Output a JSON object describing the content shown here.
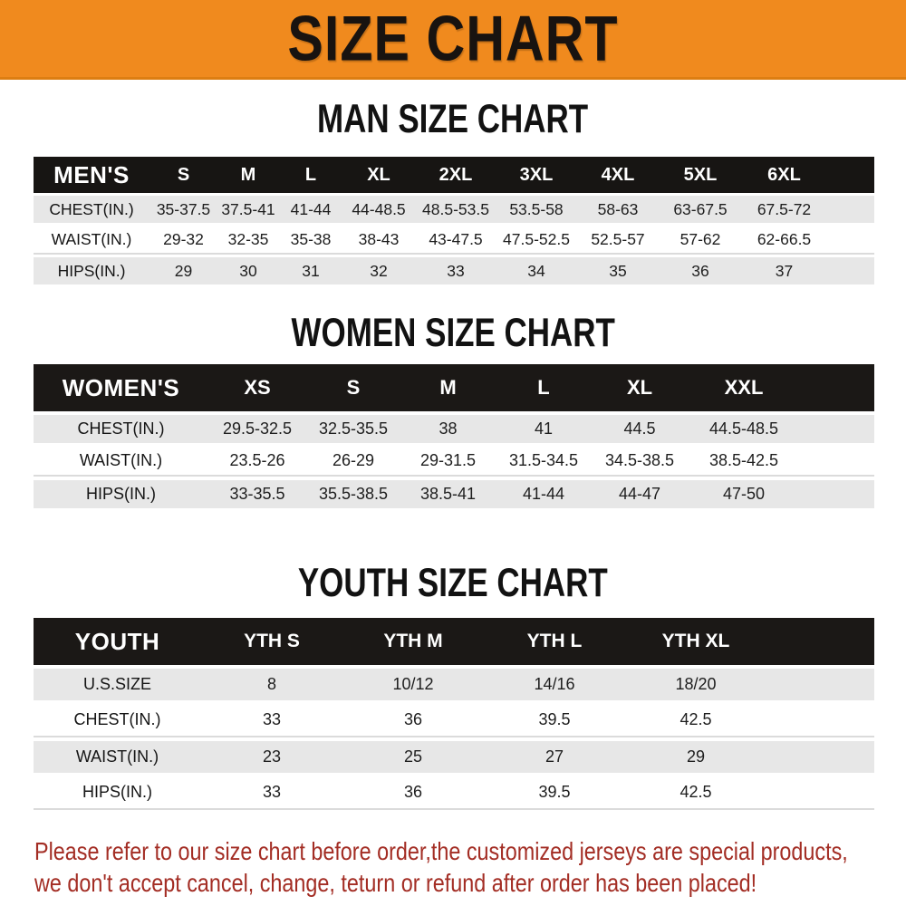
{
  "banner": {
    "title": "SIZE CHART"
  },
  "colors": {
    "banner_bg": "#F08A1E",
    "banner_text": "#181310",
    "table_header_bg": "#171513",
    "table_header_text": "#FFFFFF",
    "row_gray": "#E7E7E7",
    "row_white": "#FFFFFF",
    "note_red": "#A32D24"
  },
  "sections": [
    {
      "heading": "MAN SIZE CHART",
      "table": {
        "header": {
          "label": "MEN'S",
          "columns": [
            "S",
            "M",
            "L",
            "XL",
            "2XL",
            "3XL",
            "4XL",
            "5XL",
            "6XL"
          ]
        },
        "rows": [
          {
            "label": "CHEST(IN.)",
            "values": [
              "35-37.5",
              "37.5-41",
              "41-44",
              "44-48.5",
              "48.5-53.5",
              "53.5-58",
              "58-63",
              "63-67.5",
              "67.5-72"
            ]
          },
          {
            "label": "WAIST(IN.)",
            "values": [
              "29-32",
              "32-35",
              "35-38",
              "38-43",
              "43-47.5",
              "47.5-52.5",
              "52.5-57",
              "57-62",
              "62-66.5"
            ]
          },
          {
            "label": "HIPS(IN.)",
            "values": [
              "29",
              "30",
              "31",
              "32",
              "33",
              "34",
              "35",
              "36",
              "37"
            ]
          }
        ]
      }
    },
    {
      "heading": "WOMEN SIZE CHART",
      "table": {
        "header": {
          "label": "WOMEN'S",
          "columns": [
            "XS",
            "S",
            "M",
            "L",
            "XL",
            "XXL"
          ]
        },
        "rows": [
          {
            "label": "CHEST(IN.)",
            "values": [
              "29.5-32.5",
              "32.5-35.5",
              "38",
              "41",
              "44.5",
              "44.5-48.5"
            ]
          },
          {
            "label": "WAIST(IN.)",
            "values": [
              "23.5-26",
              "26-29",
              "29-31.5",
              "31.5-34.5",
              "34.5-38.5",
              "38.5-42.5"
            ]
          },
          {
            "label": "HIPS(IN.)",
            "values": [
              "33-35.5",
              "35.5-38.5",
              "38.5-41",
              "41-44",
              "44-47",
              "47-50"
            ]
          }
        ]
      }
    },
    {
      "heading": "YOUTH SIZE CHART",
      "table": {
        "header": {
          "label": "YOUTH",
          "columns": [
            "YTH S",
            "YTH M",
            "YTH L",
            "YTH XL"
          ]
        },
        "rows": [
          {
            "label": "U.S.SIZE",
            "values": [
              "8",
              "10/12",
              "14/16",
              "18/20"
            ]
          },
          {
            "label": "CHEST(IN.)",
            "values": [
              "33",
              "36",
              "39.5",
              "42.5"
            ]
          },
          {
            "label": "WAIST(IN.)",
            "values": [
              "23",
              "25",
              "27",
              "29"
            ]
          },
          {
            "label": "HIPS(IN.)",
            "values": [
              "33",
              "36",
              "39.5",
              "42.5"
            ]
          }
        ]
      }
    }
  ],
  "note": {
    "line1": "Please refer to our size chart before order,the customized jerseys are special products,",
    "line2": "we don't accept cancel, change, teturn or refund after order has been placed!"
  }
}
